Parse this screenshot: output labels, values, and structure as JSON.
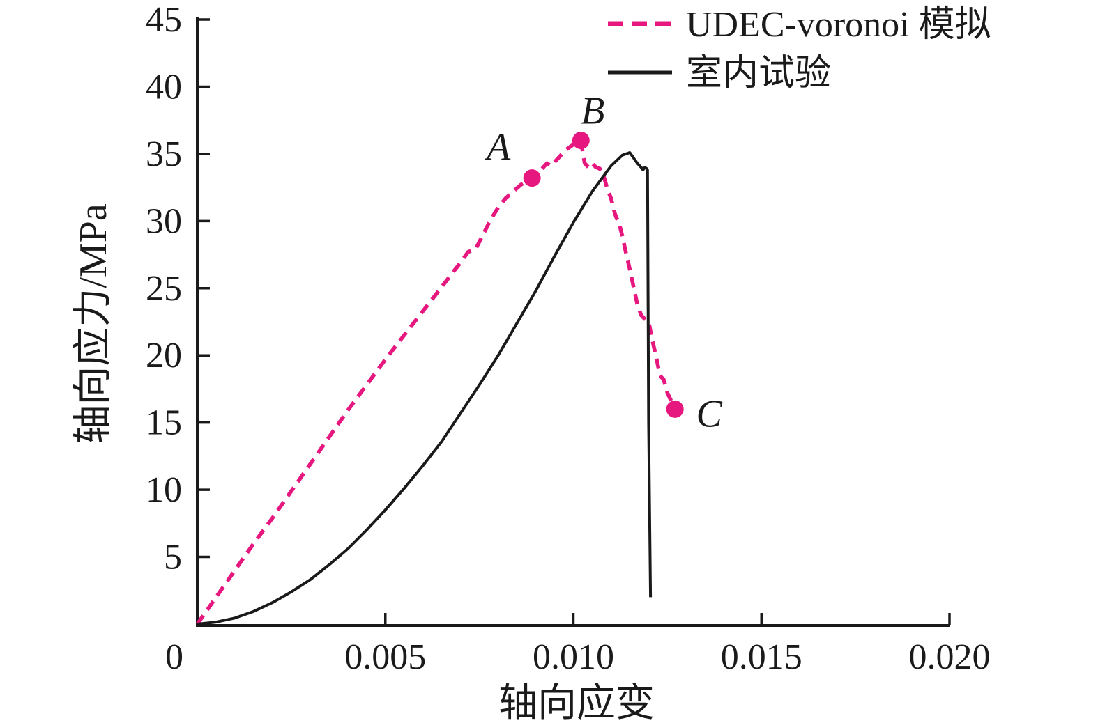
{
  "chart_data": {
    "type": "line",
    "title": "",
    "xlabel": "轴向应变",
    "ylabel": "轴向应力/MPa",
    "xlim": [
      0,
      0.02
    ],
    "ylim": [
      0,
      45
    ],
    "grid": false,
    "legend_position": "top-right-inside",
    "axis_color": "#1a1a1a",
    "x_tick_values": [
      0,
      0.005,
      0.01,
      0.015,
      0.02
    ],
    "x_tick_labels": [
      "0",
      "0.005",
      "0.010",
      "0.015",
      "0.020"
    ],
    "y_tick_values": [
      5,
      10,
      15,
      20,
      25,
      30,
      35,
      40,
      45
    ],
    "y_tick_labels": [
      "5",
      "10",
      "15",
      "20",
      "25",
      "30",
      "35",
      "40",
      "45"
    ],
    "series": [
      {
        "name": "UDEC-voronoi 模拟",
        "line_style": "dashed",
        "color": "#e6177e",
        "points": [
          [
            0,
            0
          ],
          [
            0.0005,
            2.0
          ],
          [
            0.001,
            4.0
          ],
          [
            0.0015,
            6.0
          ],
          [
            0.002,
            7.9
          ],
          [
            0.0025,
            9.9
          ],
          [
            0.003,
            11.9
          ],
          [
            0.0035,
            13.9
          ],
          [
            0.004,
            15.9
          ],
          [
            0.0045,
            17.8
          ],
          [
            0.005,
            19.7
          ],
          [
            0.0055,
            21.5
          ],
          [
            0.006,
            23.3
          ],
          [
            0.0065,
            25.1
          ],
          [
            0.0068,
            26.2
          ],
          [
            0.007,
            26.9
          ],
          [
            0.0072,
            27.7
          ],
          [
            0.0074,
            27.9
          ],
          [
            0.0076,
            29.0
          ],
          [
            0.0078,
            30.1
          ],
          [
            0.008,
            31.0
          ],
          [
            0.0082,
            31.7
          ],
          [
            0.0084,
            32.2
          ],
          [
            0.0086,
            32.7
          ],
          [
            0.0089,
            33.2
          ],
          [
            0.0091,
            33.7
          ],
          [
            0.0093,
            34.3
          ],
          [
            0.0094,
            34.1
          ],
          [
            0.0096,
            34.7
          ],
          [
            0.0098,
            35.3
          ],
          [
            0.01,
            35.7
          ],
          [
            0.0102,
            36.0
          ],
          [
            0.01025,
            35.1
          ],
          [
            0.0103,
            34.3
          ],
          [
            0.0104,
            34.0
          ],
          [
            0.0105,
            34.3
          ],
          [
            0.0106,
            34.0
          ],
          [
            0.0107,
            33.9
          ],
          [
            0.0108,
            33.4
          ],
          [
            0.0109,
            32.4
          ],
          [
            0.011,
            31.7
          ],
          [
            0.0111,
            30.6
          ],
          [
            0.01115,
            30.2
          ],
          [
            0.0112,
            30.0
          ],
          [
            0.0113,
            28.9
          ],
          [
            0.0114,
            27.6
          ],
          [
            0.0115,
            26.4
          ],
          [
            0.0116,
            25.1
          ],
          [
            0.0117,
            23.8
          ],
          [
            0.0118,
            23.0
          ],
          [
            0.0119,
            22.7
          ],
          [
            0.012,
            22.5
          ],
          [
            0.0121,
            21.1
          ],
          [
            0.0122,
            19.9
          ],
          [
            0.0123,
            18.5
          ],
          [
            0.0124,
            18.2
          ],
          [
            0.0125,
            17.2
          ],
          [
            0.0126,
            16.6
          ],
          [
            0.0127,
            16.0
          ]
        ]
      },
      {
        "name": "室内试验",
        "line_style": "solid",
        "color": "#1a1a1a",
        "points": [
          [
            0,
            0
          ],
          [
            0.0005,
            0.15
          ],
          [
            0.001,
            0.45
          ],
          [
            0.0015,
            0.95
          ],
          [
            0.002,
            1.6
          ],
          [
            0.0025,
            2.4
          ],
          [
            0.003,
            3.3
          ],
          [
            0.0035,
            4.4
          ],
          [
            0.004,
            5.6
          ],
          [
            0.0045,
            7.0
          ],
          [
            0.005,
            8.5
          ],
          [
            0.0055,
            10.1
          ],
          [
            0.006,
            11.8
          ],
          [
            0.0065,
            13.6
          ],
          [
            0.007,
            15.7
          ],
          [
            0.0075,
            17.8
          ],
          [
            0.008,
            20.0
          ],
          [
            0.0085,
            22.4
          ],
          [
            0.009,
            24.8
          ],
          [
            0.0095,
            27.4
          ],
          [
            0.01,
            29.9
          ],
          [
            0.0105,
            32.2
          ],
          [
            0.011,
            34.1
          ],
          [
            0.0113,
            34.9
          ],
          [
            0.0115,
            35.1
          ],
          [
            0.0117,
            34.3
          ],
          [
            0.0118,
            34.0
          ],
          [
            0.01185,
            33.8
          ],
          [
            0.0119,
            34.0
          ],
          [
            0.01195,
            33.9
          ],
          [
            0.01197,
            33.8
          ],
          [
            0.012,
            15.0
          ],
          [
            0.01205,
            2.0
          ]
        ]
      }
    ],
    "annotations": [
      {
        "label": "A",
        "x": 0.0089,
        "y": 33.2,
        "marker": "dot",
        "color": "#e6177e"
      },
      {
        "label": "B",
        "x": 0.0102,
        "y": 36.0,
        "marker": "dot",
        "color": "#e6177e"
      },
      {
        "label": "C",
        "x": 0.0127,
        "y": 16.0,
        "marker": "dot",
        "color": "#e6177e"
      }
    ]
  }
}
